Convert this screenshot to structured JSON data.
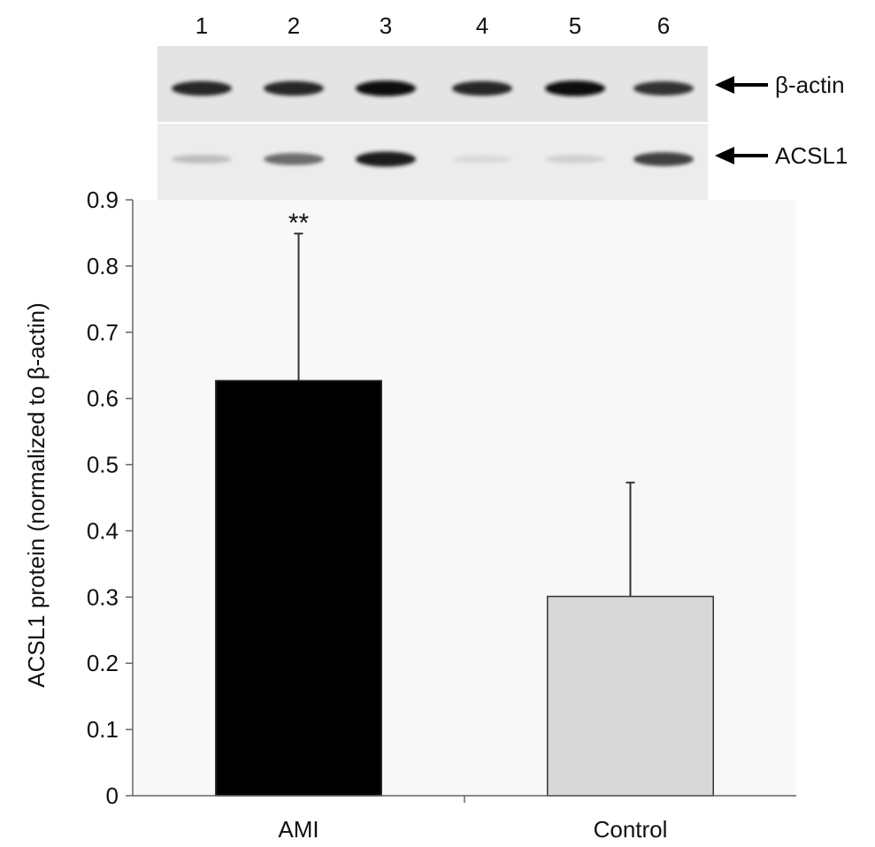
{
  "blot": {
    "lanes": [
      "1",
      "2",
      "3",
      "4",
      "5",
      "6"
    ],
    "rows": [
      {
        "label": "β-actin",
        "intensity": [
          0.85,
          0.85,
          0.95,
          0.85,
          0.95,
          0.8
        ]
      },
      {
        "label": "ACSL1",
        "intensity": [
          0.2,
          0.55,
          0.9,
          0.08,
          0.12,
          0.75
        ]
      }
    ]
  },
  "chart_data": {
    "type": "bar",
    "categories": [
      "AMI",
      "Control"
    ],
    "values": [
      0.627,
      0.301
    ],
    "error_upper": [
      0.849,
      0.473
    ],
    "bar_colors": [
      "#000000",
      "#d8d8d8"
    ],
    "significance": [
      "**",
      ""
    ],
    "title": "",
    "xlabel": "",
    "ylabel": "ACSL1  protein (normalized to β-actin)",
    "ylim": [
      0,
      0.9
    ],
    "yticks": [
      0,
      0.1,
      0.2,
      0.3,
      0.4,
      0.5,
      0.6,
      0.7,
      0.8,
      0.9
    ],
    "grid": false,
    "legend": "none"
  }
}
